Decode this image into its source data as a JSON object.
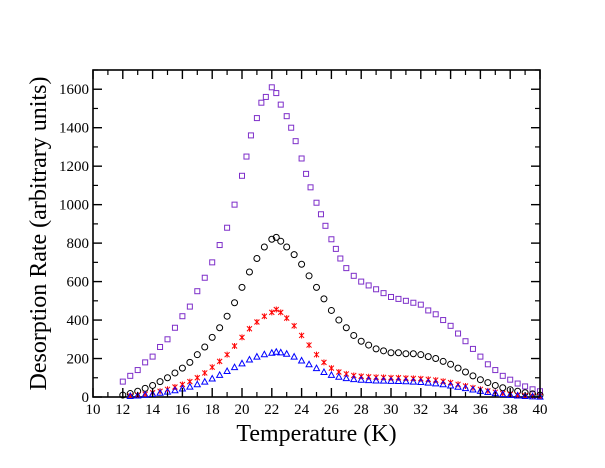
{
  "chart_data": {
    "type": "scatter",
    "title": "",
    "xlabel": "Temperature (K)",
    "ylabel": "Desorption Rate (arbitrary units)",
    "xlim": [
      10,
      40
    ],
    "ylim": [
      0,
      1700
    ],
    "x_ticks": [
      10,
      12,
      14,
      16,
      18,
      20,
      22,
      24,
      26,
      28,
      30,
      32,
      34,
      36,
      38,
      40
    ],
    "y_ticks": [
      0,
      200,
      400,
      600,
      800,
      1000,
      1200,
      1400,
      1600
    ],
    "grid": false,
    "legend": "none",
    "series": [
      {
        "name": "purple-squares",
        "marker": "square",
        "color": "#7e2fc9",
        "points": [
          [
            12.0,
            80
          ],
          [
            12.5,
            110
          ],
          [
            13.0,
            140
          ],
          [
            13.5,
            180
          ],
          [
            14.0,
            210
          ],
          [
            14.5,
            260
          ],
          [
            15.0,
            300
          ],
          [
            15.5,
            360
          ],
          [
            16.0,
            420
          ],
          [
            16.5,
            470
          ],
          [
            17.0,
            550
          ],
          [
            17.5,
            620
          ],
          [
            18.0,
            700
          ],
          [
            18.5,
            790
          ],
          [
            19.0,
            880
          ],
          [
            19.5,
            1000
          ],
          [
            20.0,
            1150
          ],
          [
            20.3,
            1250
          ],
          [
            20.6,
            1360
          ],
          [
            21.0,
            1450
          ],
          [
            21.3,
            1530
          ],
          [
            21.6,
            1560
          ],
          [
            22.0,
            1610
          ],
          [
            22.3,
            1580
          ],
          [
            22.6,
            1520
          ],
          [
            23.0,
            1460
          ],
          [
            23.3,
            1400
          ],
          [
            23.6,
            1330
          ],
          [
            24.0,
            1240
          ],
          [
            24.3,
            1160
          ],
          [
            24.6,
            1090
          ],
          [
            25.0,
            1010
          ],
          [
            25.3,
            950
          ],
          [
            25.6,
            890
          ],
          [
            26.0,
            820
          ],
          [
            26.3,
            770
          ],
          [
            26.6,
            720
          ],
          [
            27.0,
            670
          ],
          [
            27.5,
            630
          ],
          [
            28.0,
            600
          ],
          [
            28.5,
            580
          ],
          [
            29.0,
            560
          ],
          [
            29.5,
            540
          ],
          [
            30.0,
            520
          ],
          [
            30.5,
            510
          ],
          [
            31.0,
            500
          ],
          [
            31.5,
            490
          ],
          [
            32.0,
            480
          ],
          [
            32.5,
            450
          ],
          [
            33.0,
            430
          ],
          [
            33.5,
            400
          ],
          [
            34.0,
            370
          ],
          [
            34.5,
            330
          ],
          [
            35.0,
            290
          ],
          [
            35.5,
            250
          ],
          [
            36.0,
            210
          ],
          [
            36.5,
            170
          ],
          [
            37.0,
            140
          ],
          [
            37.5,
            110
          ],
          [
            38.0,
            90
          ],
          [
            38.5,
            70
          ],
          [
            39.0,
            55
          ],
          [
            39.5,
            40
          ],
          [
            40.0,
            30
          ]
        ]
      },
      {
        "name": "black-circles",
        "marker": "circle",
        "color": "#000000",
        "points": [
          [
            12.0,
            10
          ],
          [
            12.5,
            18
          ],
          [
            13.0,
            30
          ],
          [
            13.5,
            45
          ],
          [
            14.0,
            60
          ],
          [
            14.5,
            80
          ],
          [
            15.0,
            100
          ],
          [
            15.5,
            125
          ],
          [
            16.0,
            150
          ],
          [
            16.5,
            180
          ],
          [
            17.0,
            220
          ],
          [
            17.5,
            260
          ],
          [
            18.0,
            310
          ],
          [
            18.5,
            360
          ],
          [
            19.0,
            420
          ],
          [
            19.5,
            490
          ],
          [
            20.0,
            570
          ],
          [
            20.5,
            650
          ],
          [
            21.0,
            720
          ],
          [
            21.5,
            780
          ],
          [
            22.0,
            820
          ],
          [
            22.3,
            830
          ],
          [
            22.6,
            810
          ],
          [
            23.0,
            780
          ],
          [
            23.5,
            740
          ],
          [
            24.0,
            690
          ],
          [
            24.5,
            630
          ],
          [
            25.0,
            570
          ],
          [
            25.5,
            510
          ],
          [
            26.0,
            450
          ],
          [
            26.5,
            400
          ],
          [
            27.0,
            360
          ],
          [
            27.5,
            320
          ],
          [
            28.0,
            290
          ],
          [
            28.5,
            270
          ],
          [
            29.0,
            250
          ],
          [
            29.5,
            240
          ],
          [
            30.0,
            230
          ],
          [
            30.5,
            230
          ],
          [
            31.0,
            225
          ],
          [
            31.5,
            225
          ],
          [
            32.0,
            220
          ],
          [
            32.5,
            210
          ],
          [
            33.0,
            200
          ],
          [
            33.5,
            185
          ],
          [
            34.0,
            170
          ],
          [
            34.5,
            150
          ],
          [
            35.0,
            130
          ],
          [
            35.5,
            110
          ],
          [
            36.0,
            90
          ],
          [
            36.5,
            75
          ],
          [
            37.0,
            60
          ],
          [
            37.5,
            48
          ],
          [
            38.0,
            38
          ],
          [
            38.5,
            30
          ],
          [
            39.0,
            22
          ],
          [
            39.5,
            16
          ],
          [
            40.0,
            10
          ]
        ]
      },
      {
        "name": "red-crosses",
        "marker": "cross",
        "color": "#ff0000",
        "points": [
          [
            12.5,
            5
          ],
          [
            13.0,
            10
          ],
          [
            13.5,
            15
          ],
          [
            14.0,
            22
          ],
          [
            14.5,
            30
          ],
          [
            15.0,
            40
          ],
          [
            15.5,
            52
          ],
          [
            16.0,
            65
          ],
          [
            16.5,
            80
          ],
          [
            17.0,
            100
          ],
          [
            17.5,
            125
          ],
          [
            18.0,
            155
          ],
          [
            18.5,
            185
          ],
          [
            19.0,
            220
          ],
          [
            19.5,
            265
          ],
          [
            20.0,
            310
          ],
          [
            20.5,
            355
          ],
          [
            21.0,
            390
          ],
          [
            21.5,
            420
          ],
          [
            22.0,
            440
          ],
          [
            22.3,
            455
          ],
          [
            22.6,
            440
          ],
          [
            23.0,
            410
          ],
          [
            23.5,
            370
          ],
          [
            24.0,
            320
          ],
          [
            24.5,
            270
          ],
          [
            25.0,
            220
          ],
          [
            25.5,
            180
          ],
          [
            26.0,
            150
          ],
          [
            26.5,
            130
          ],
          [
            27.0,
            120
          ],
          [
            27.5,
            112
          ],
          [
            28.0,
            108
          ],
          [
            28.5,
            105
          ],
          [
            29.0,
            103
          ],
          [
            29.5,
            102
          ],
          [
            30.0,
            100
          ],
          [
            30.5,
            100
          ],
          [
            31.0,
            98
          ],
          [
            31.5,
            97
          ],
          [
            32.0,
            95
          ],
          [
            32.5,
            92
          ],
          [
            33.0,
            88
          ],
          [
            33.5,
            82
          ],
          [
            34.0,
            75
          ],
          [
            34.5,
            66
          ],
          [
            35.0,
            57
          ],
          [
            35.5,
            48
          ],
          [
            36.0,
            40
          ],
          [
            36.5,
            32
          ],
          [
            37.0,
            25
          ],
          [
            37.5,
            19
          ],
          [
            38.0,
            14
          ],
          [
            38.5,
            10
          ],
          [
            39.0,
            7
          ],
          [
            39.5,
            5
          ],
          [
            40.0,
            3
          ]
        ]
      },
      {
        "name": "blue-triangles",
        "marker": "triangle",
        "color": "#0000ff",
        "points": [
          [
            12.5,
            5
          ],
          [
            13.0,
            8
          ],
          [
            13.5,
            12
          ],
          [
            14.0,
            16
          ],
          [
            14.5,
            22
          ],
          [
            15.0,
            28
          ],
          [
            15.5,
            35
          ],
          [
            16.0,
            44
          ],
          [
            16.5,
            54
          ],
          [
            17.0,
            66
          ],
          [
            17.5,
            80
          ],
          [
            18.0,
            96
          ],
          [
            18.5,
            115
          ],
          [
            19.0,
            135
          ],
          [
            19.5,
            155
          ],
          [
            20.0,
            175
          ],
          [
            20.5,
            195
          ],
          [
            21.0,
            210
          ],
          [
            21.5,
            222
          ],
          [
            22.0,
            230
          ],
          [
            22.3,
            235
          ],
          [
            22.6,
            232
          ],
          [
            23.0,
            225
          ],
          [
            23.5,
            210
          ],
          [
            24.0,
            190
          ],
          [
            24.5,
            170
          ],
          [
            25.0,
            150
          ],
          [
            25.5,
            130
          ],
          [
            26.0,
            115
          ],
          [
            26.5,
            105
          ],
          [
            27.0,
            98
          ],
          [
            27.5,
            93
          ],
          [
            28.0,
            90
          ],
          [
            28.5,
            88
          ],
          [
            29.0,
            86
          ],
          [
            29.5,
            85
          ],
          [
            30.0,
            84
          ],
          [
            30.5,
            83
          ],
          [
            31.0,
            82
          ],
          [
            31.5,
            80
          ],
          [
            32.0,
            78
          ],
          [
            32.5,
            75
          ],
          [
            33.0,
            71
          ],
          [
            33.5,
            66
          ],
          [
            34.0,
            60
          ],
          [
            34.5,
            53
          ],
          [
            35.0,
            46
          ],
          [
            35.5,
            39
          ],
          [
            36.0,
            32
          ],
          [
            36.5,
            26
          ],
          [
            37.0,
            20
          ],
          [
            37.5,
            15
          ],
          [
            38.0,
            11
          ],
          [
            38.5,
            8
          ],
          [
            39.0,
            5
          ],
          [
            39.5,
            3
          ],
          [
            40.0,
            2
          ]
        ]
      }
    ]
  }
}
